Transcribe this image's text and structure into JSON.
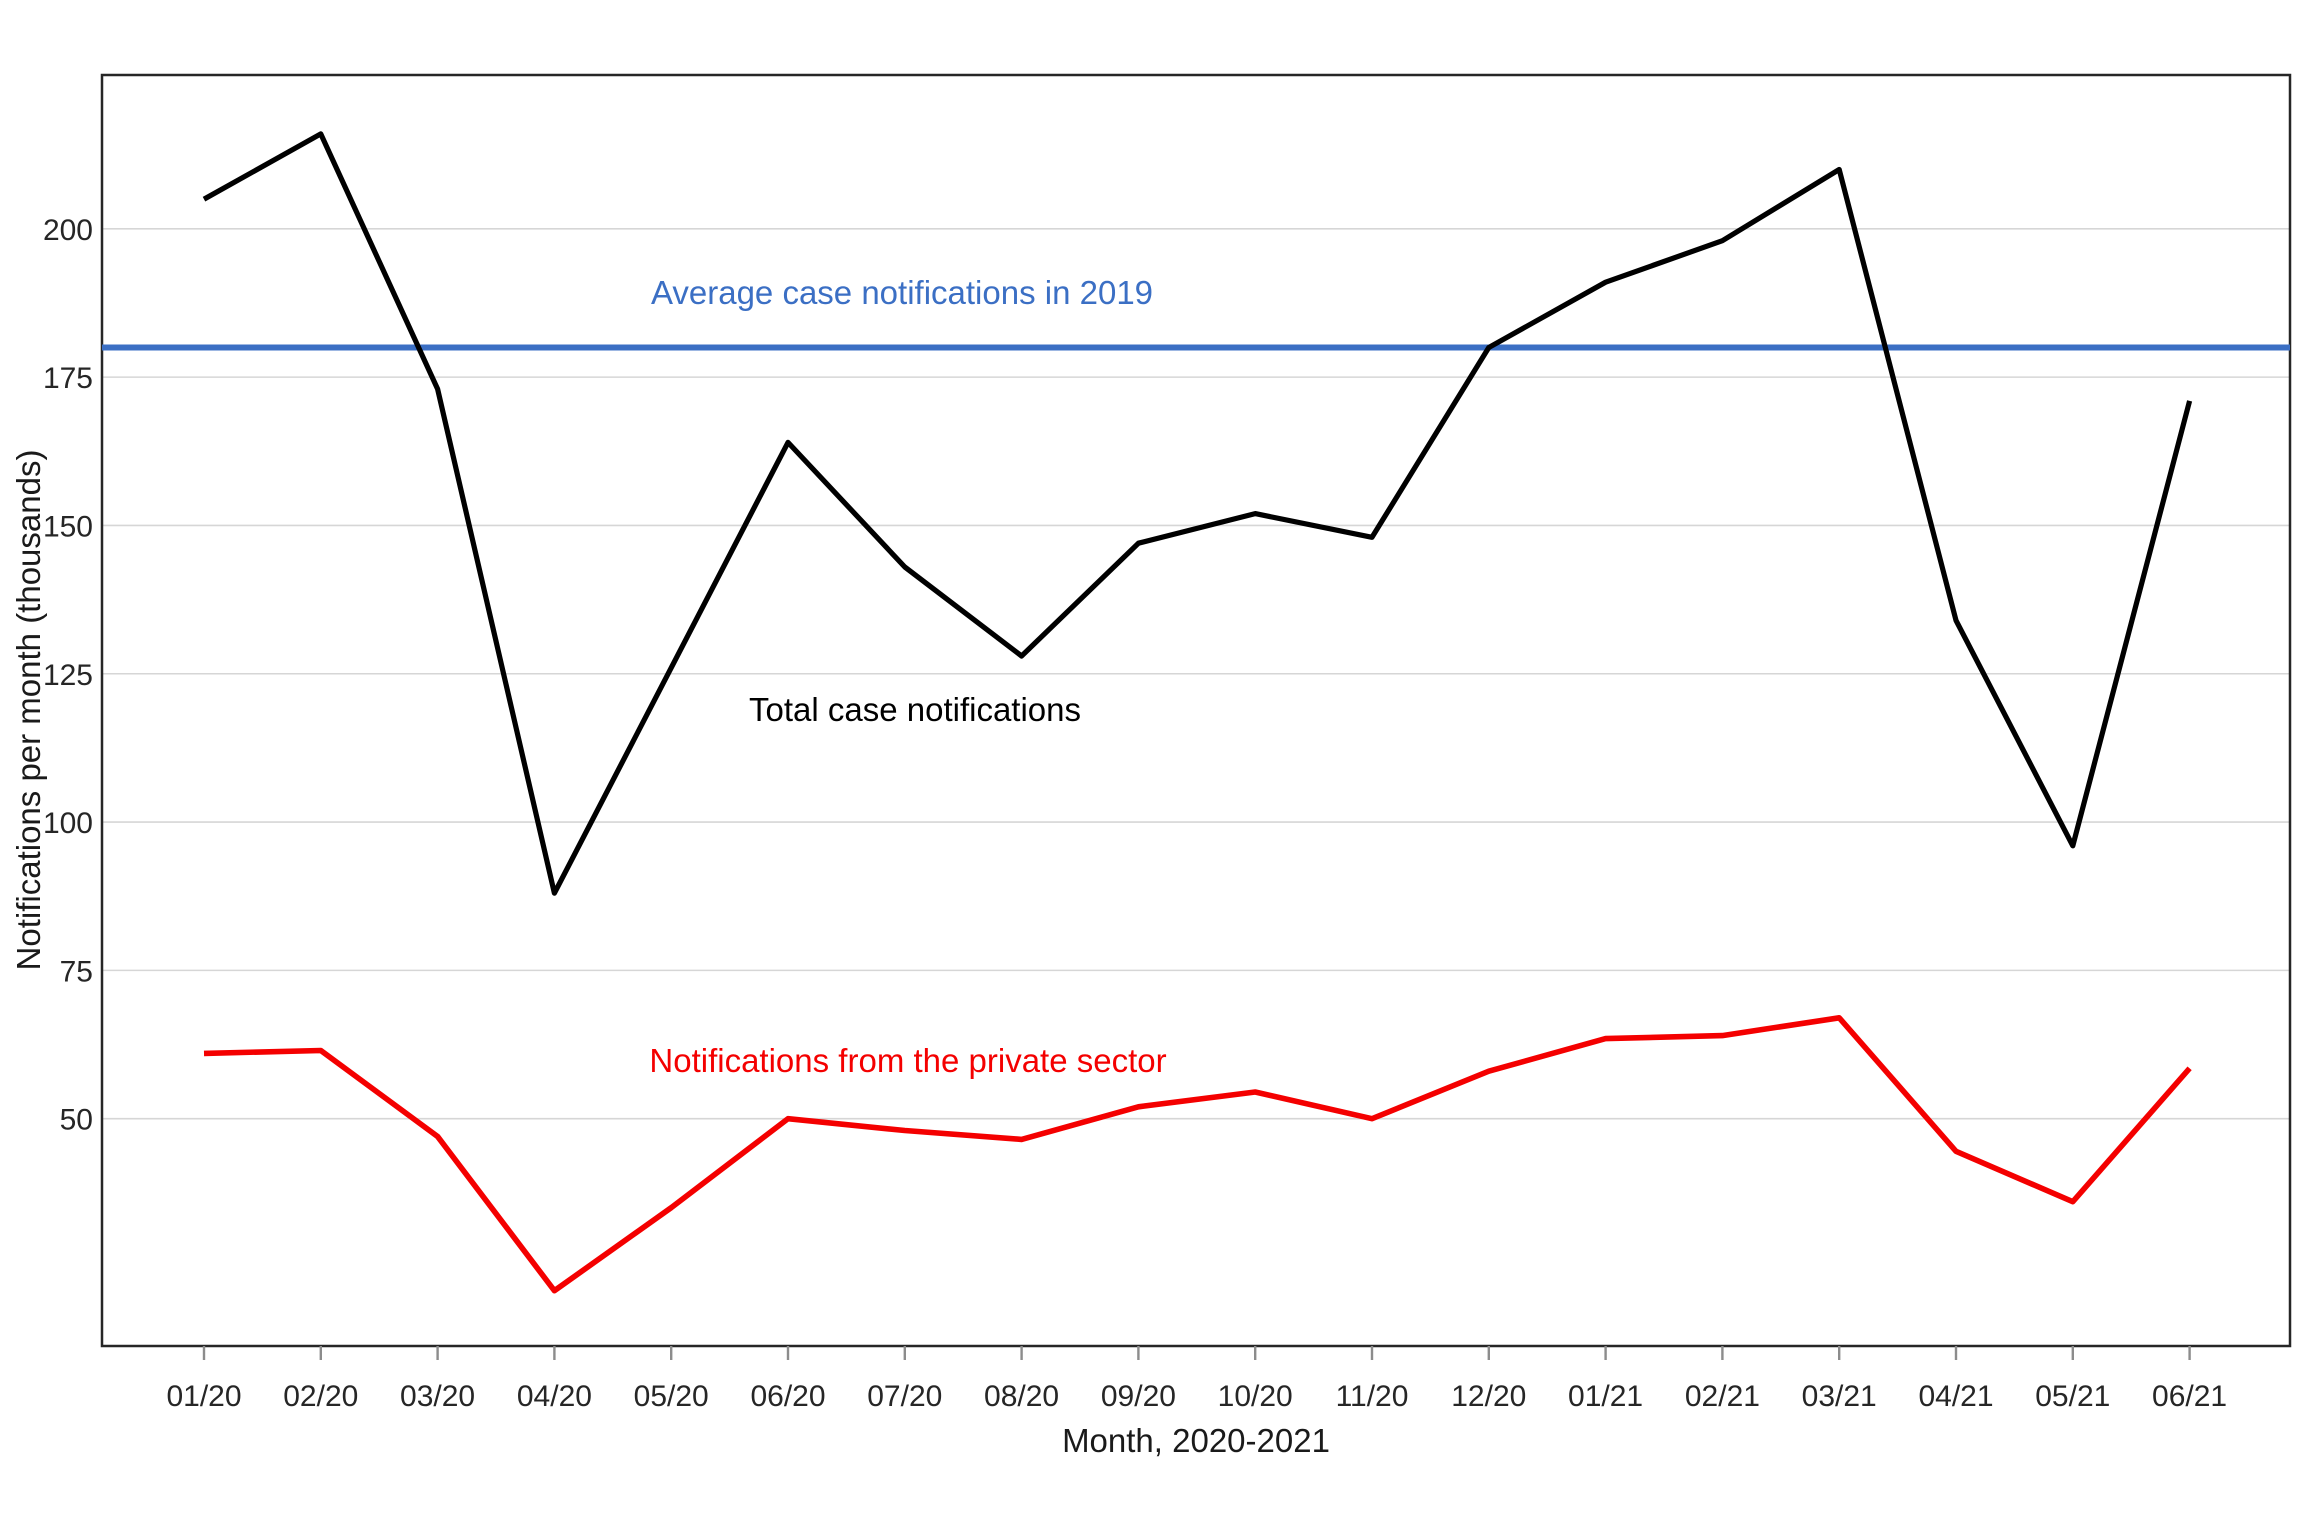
{
  "chart_data": {
    "type": "line",
    "categories": [
      "01/20",
      "02/20",
      "03/20",
      "04/20",
      "05/20",
      "06/20",
      "07/20",
      "08/20",
      "09/20",
      "10/20",
      "11/20",
      "12/20",
      "01/21",
      "02/21",
      "03/21",
      "04/21",
      "05/21",
      "06/21"
    ],
    "series": [
      {
        "name": "Total case notifications",
        "color": "#000000",
        "values": [
          205,
          216,
          173,
          88,
          126,
          164,
          143,
          128,
          147,
          152,
          148,
          180,
          191,
          198,
          210,
          134,
          96,
          171
        ]
      },
      {
        "name": "Notifications from the private sector",
        "color": "#f40000",
        "values": [
          61,
          61.5,
          47,
          21,
          35,
          50,
          48,
          46.5,
          52,
          54.5,
          50,
          58,
          63.5,
          64,
          67,
          44.5,
          36,
          58.5
        ]
      }
    ],
    "reference_line": {
      "label": "Average case notifications in 2019",
      "value": 180,
      "color": "#3b6fc4"
    },
    "xlabel": "Month, 2020-2021",
    "ylabel": "Notifications per month (thousands)",
    "y_ticks": [
      50,
      75,
      100,
      125,
      150,
      175,
      200
    ],
    "ylim": [
      11.6,
      226
    ],
    "grid": "horizontal-only",
    "legend": "inline-text-labels"
  }
}
